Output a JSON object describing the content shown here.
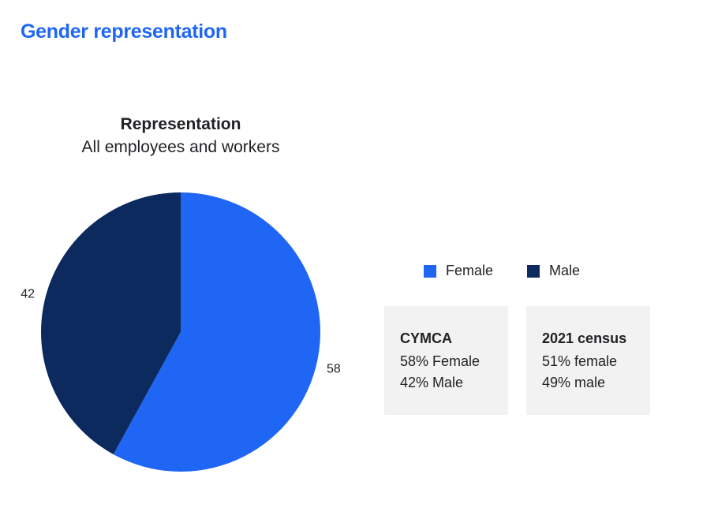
{
  "page": {
    "title": "Gender representation"
  },
  "colors": {
    "title_blue": "#1f66f5",
    "female": "#1f66f5",
    "male": "#0d2a5e",
    "box_bg": "#f2f2f2"
  },
  "chart_data": {
    "type": "pie",
    "title": "Representation",
    "subtitle": "All employees and workers",
    "categories": [
      "Female",
      "Male"
    ],
    "values": [
      58,
      42
    ],
    "data_labels": [
      "58",
      "42"
    ],
    "colors": [
      "#1f66f5",
      "#0d2a5e"
    ],
    "legend": {
      "position": "right",
      "items": [
        "Female",
        "Male"
      ]
    }
  },
  "stats": [
    {
      "title": "CYMCA",
      "lines": [
        "58% Female",
        "42% Male"
      ]
    },
    {
      "title": "2021 census",
      "lines": [
        "51% female",
        "49% male"
      ]
    }
  ]
}
